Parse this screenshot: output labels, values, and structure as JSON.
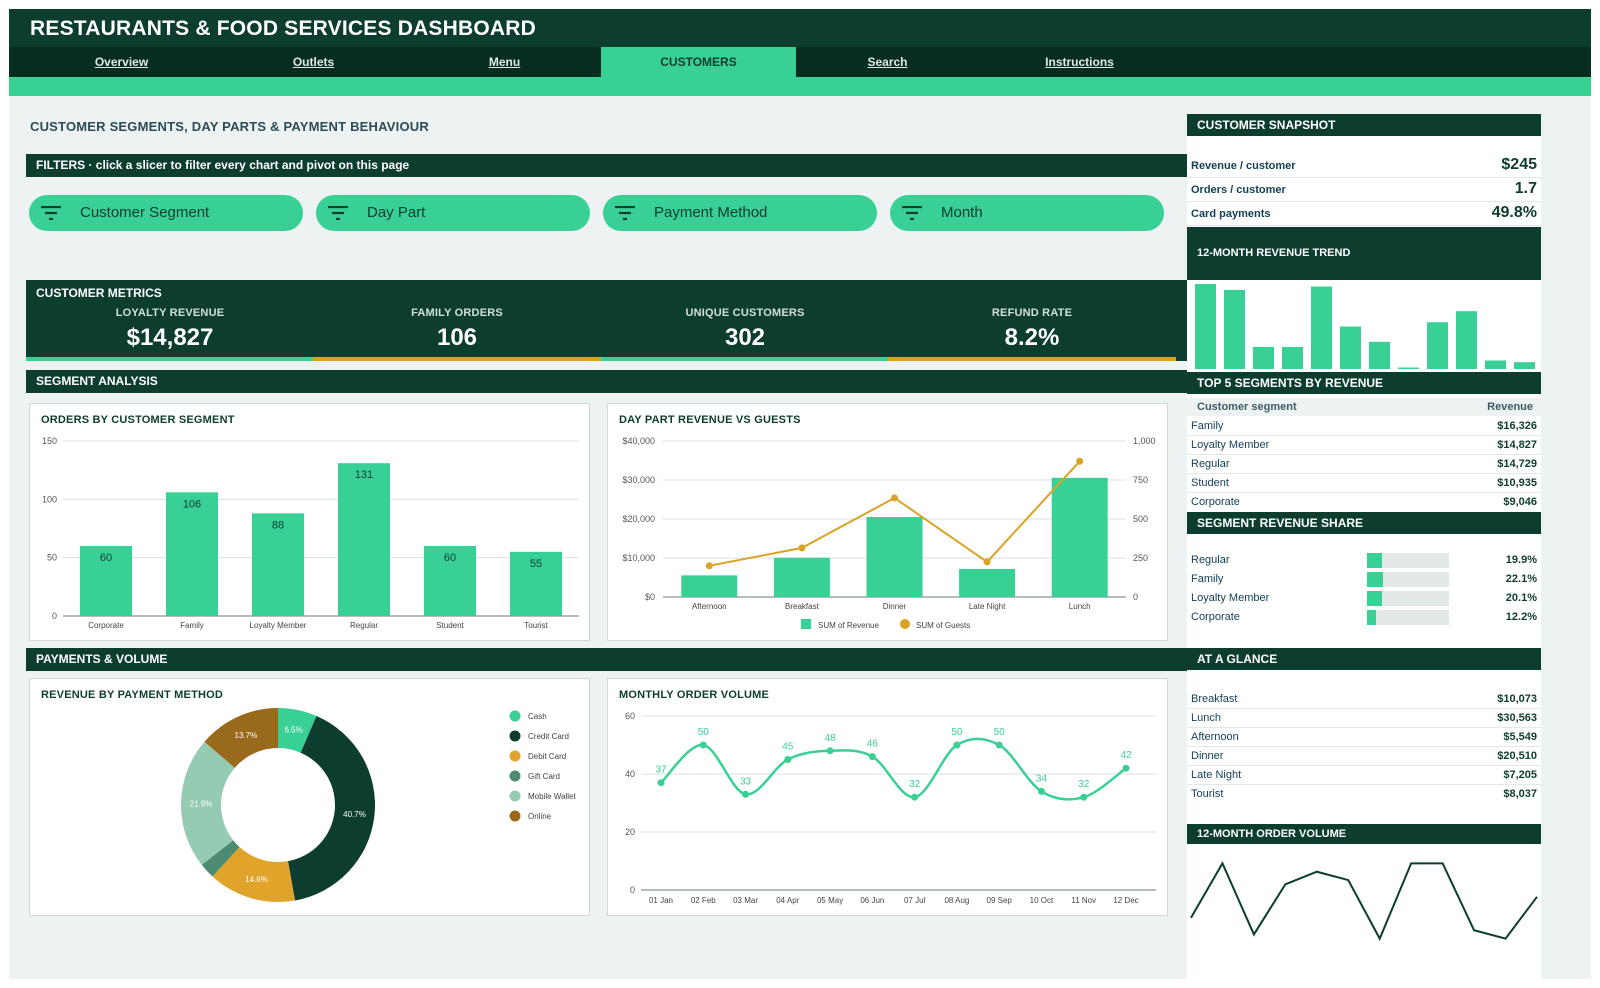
{
  "header": {
    "title": "RESTAURANTS & FOOD SERVICES DASHBOARD"
  },
  "nav": {
    "tabs": [
      {
        "label": "Overview",
        "active": false
      },
      {
        "label": "Outlets",
        "active": false
      },
      {
        "label": "Menu",
        "active": false
      },
      {
        "label": "CUSTOMERS",
        "active": true
      },
      {
        "label": "Search",
        "active": false
      },
      {
        "label": "Instructions",
        "active": false
      }
    ]
  },
  "page": {
    "title": "CUSTOMER SEGMENTS, DAY PARTS & PAYMENT BEHAVIOUR"
  },
  "filters": {
    "title": "FILTERS  ·  click a slicer to filter every chart and pivot on this page",
    "icon": "filter-icon",
    "slicers": [
      "Customer Segment",
      "Day Part",
      "Payment Method",
      "Month"
    ]
  },
  "metrics": {
    "title": "CUSTOMER METRICS",
    "kpis": [
      {
        "label": "LOYALTY REVENUE",
        "value": "$14,827",
        "accent": "#39d095"
      },
      {
        "label": "FAMILY ORDERS",
        "value": "106",
        "accent": "#d9a326"
      },
      {
        "label": "UNIQUE CUSTOMERS",
        "value": "302",
        "accent": "#39d095"
      },
      {
        "label": "REFUND RATE",
        "value": "8.2%",
        "accent": "#d9a326"
      }
    ]
  },
  "sections": {
    "segment": "SEGMENT ANALYSIS",
    "payments": "PAYMENTS & VOLUME"
  },
  "colors": {
    "green": "#39d095",
    "dark": "#0d3d2f",
    "gold": "#d9a326"
  },
  "chart_data": [
    {
      "id": "orders",
      "type": "bar",
      "title": "ORDERS BY CUSTOMER SEGMENT",
      "categories": [
        "Corporate",
        "Family",
        "Loyalty Member",
        "Regular",
        "Student",
        "Tourist"
      ],
      "values": [
        60,
        106,
        88,
        131,
        60,
        55
      ],
      "ylim": [
        0,
        150
      ],
      "yticks": [
        "0",
        "50",
        "100",
        "150"
      ],
      "grid": true
    },
    {
      "id": "daypart",
      "type": "bar",
      "title": "DAY PART REVENUE VS GUESTS",
      "categories": [
        "Afternoon",
        "Breakfast",
        "Dinner",
        "Late Night",
        "Lunch"
      ],
      "series": [
        {
          "name": "SUM of Revenue",
          "type": "bar",
          "axis": "left",
          "values": [
            5549,
            10073,
            20510,
            7205,
            30563
          ]
        },
        {
          "name": "SUM of Guests",
          "type": "line",
          "axis": "right",
          "values": [
            200,
            315,
            635,
            225,
            870
          ]
        }
      ],
      "ylim": [
        0,
        40000
      ],
      "y2lim": [
        0,
        1000
      ],
      "yticks": [
        "$0",
        "$10,000",
        "$20,000",
        "$30,000",
        "$40,000"
      ],
      "y2ticks": [
        "0",
        "250",
        "500",
        "750",
        "1,000"
      ],
      "legend": "bottom"
    },
    {
      "id": "payment",
      "type": "pie",
      "title": "REVENUE BY PAYMENT METHOD",
      "labels": [
        "Cash",
        "Credit Card",
        "Debit Card",
        "Gift Card",
        "Mobile Wallet",
        "Online"
      ],
      "values": [
        6.5,
        40.7,
        14.6,
        2.6,
        21.9,
        13.7
      ],
      "value_labels": [
        "6.5%",
        "40.7%",
        "14.6%",
        "",
        "21.9%",
        "13.7%"
      ],
      "colors": [
        "#39d095",
        "#0d3d2f",
        "#e0a42a",
        "#4d8a72",
        "#94cbb2",
        "#9a6a1c"
      ],
      "legend": "right"
    },
    {
      "id": "monthly",
      "type": "line",
      "title": "MONTHLY ORDER VOLUME",
      "categories": [
        "01 Jan",
        "02 Feb",
        "03 Mar",
        "04 Apr",
        "05 May",
        "06 Jun",
        "07 Jul",
        "08 Aug",
        "09 Sep",
        "10 Oct",
        "11 Nov",
        "12 Dec"
      ],
      "values": [
        37,
        50,
        33,
        45,
        48,
        46,
        32,
        50,
        50,
        34,
        32,
        42
      ],
      "ylim": [
        0,
        60
      ],
      "yticks": [
        "0",
        "20",
        "40",
        "60"
      ],
      "grid": true
    },
    {
      "id": "trend12",
      "type": "bar",
      "title": "12-MONTH REVENUE TREND",
      "values": [
        100,
        93,
        26,
        26,
        97,
        50,
        32,
        0,
        55,
        68,
        10,
        8
      ]
    },
    {
      "id": "volume12",
      "type": "line",
      "title": "12-MONTH ORDER VOLUME",
      "values": [
        37,
        50,
        33,
        45,
        48,
        46,
        32,
        50,
        50,
        34,
        32,
        42
      ]
    }
  ],
  "snapshot": {
    "title": "CUSTOMER SNAPSHOT",
    "rows": [
      {
        "label": "Revenue / customer",
        "value": "$245"
      },
      {
        "label": "Orders / customer",
        "value": "1.7"
      },
      {
        "label": "Card payments",
        "value": "49.8%"
      }
    ]
  },
  "trend_title": "12-MONTH REVENUE TREND",
  "top5": {
    "title": "TOP 5 SEGMENTS BY REVENUE",
    "col1": "Customer segment",
    "col2": "Revenue",
    "rows": [
      {
        "label": "Family",
        "value": "$16,326"
      },
      {
        "label": "Loyalty Member",
        "value": "$14,827"
      },
      {
        "label": "Regular",
        "value": "$14,729"
      },
      {
        "label": "Student",
        "value": "$10,935"
      },
      {
        "label": "Corporate",
        "value": "$9,046"
      }
    ]
  },
  "share": {
    "title": "SEGMENT REVENUE SHARE",
    "rows": [
      {
        "label": "Regular",
        "value": "19.9%",
        "pct": 19.9
      },
      {
        "label": "Family",
        "value": "22.1%",
        "pct": 22.1
      },
      {
        "label": "Loyalty Member",
        "value": "20.1%",
        "pct": 20.1
      },
      {
        "label": "Corporate",
        "value": "12.2%",
        "pct": 12.2
      }
    ]
  },
  "glance": {
    "title": "AT A GLANCE",
    "rows": [
      {
        "label": "Breakfast",
        "value": "$10,073"
      },
      {
        "label": "Lunch",
        "value": "$30,563"
      },
      {
        "label": "Afternoon",
        "value": "$5,549"
      },
      {
        "label": "Dinner",
        "value": "$20,510"
      },
      {
        "label": "Late Night",
        "value": "$7,205"
      },
      {
        "label": "Tourist",
        "value": "$8,037"
      }
    ]
  },
  "volume_title": "12-MONTH ORDER VOLUME"
}
